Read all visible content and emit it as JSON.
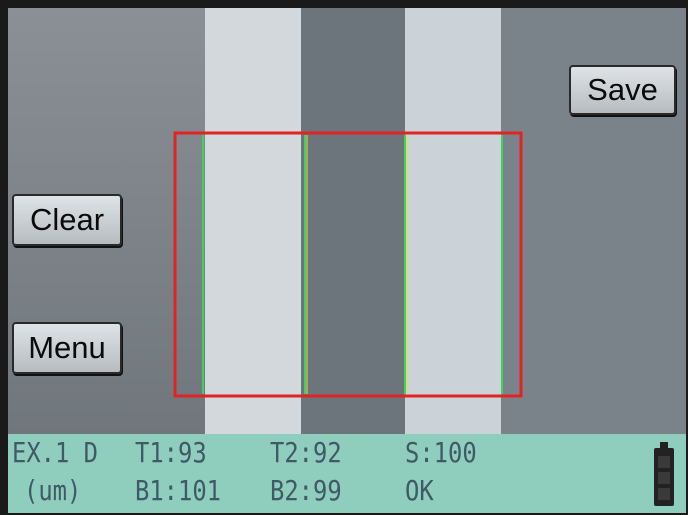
{
  "buttons": {
    "save": "Save",
    "clear": "Clear",
    "menu": "Menu"
  },
  "status": {
    "row1": [
      "EX.1 D",
      "T1:93",
      "T2:92",
      "S:100"
    ],
    "row2": [
      "(um)",
      "B1:101",
      "B2:99",
      "OK"
    ]
  }
}
